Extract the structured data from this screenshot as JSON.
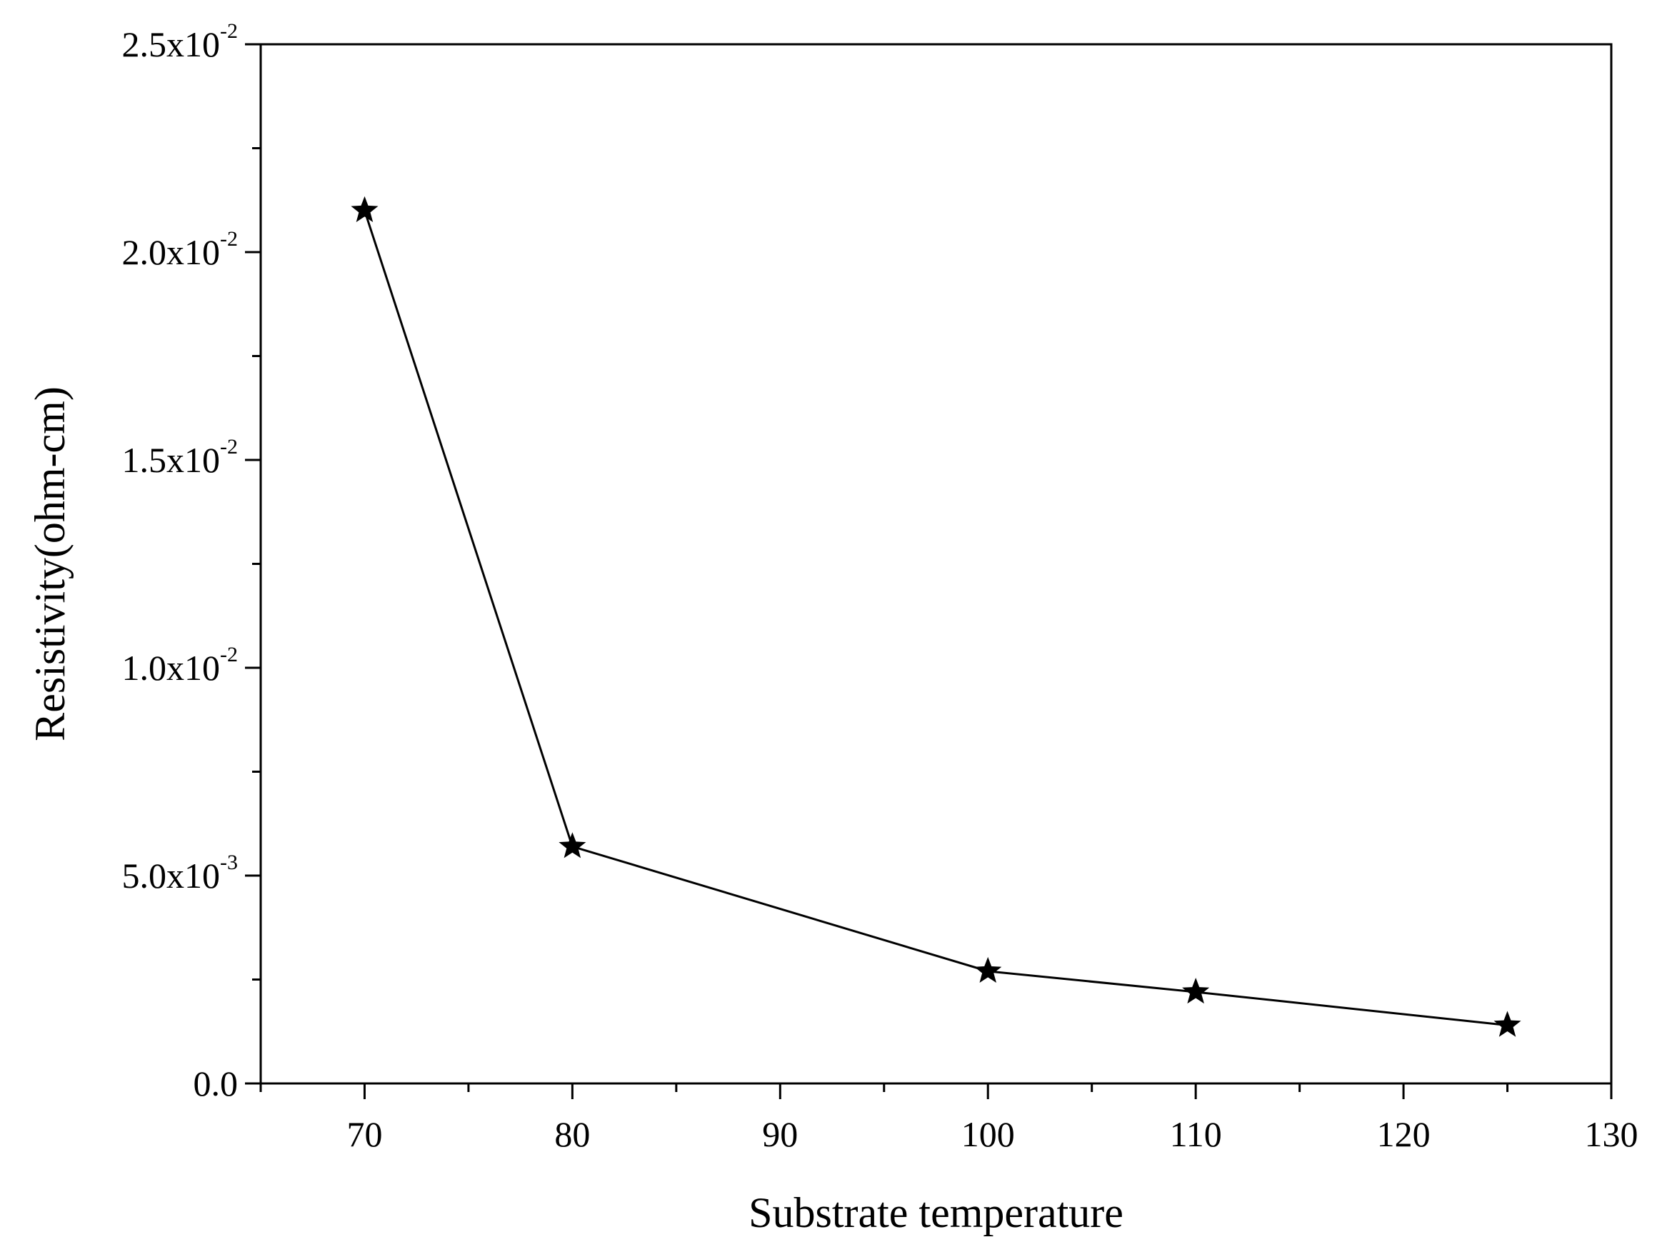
{
  "chart_data": {
    "type": "line",
    "xlabel": "Substrate temperature",
    "ylabel": "Resistivity(ohm-cm)",
    "xlim": [
      65,
      130
    ],
    "ylim": [
      0,
      0.025
    ],
    "x_ticks": [
      70,
      80,
      90,
      100,
      110,
      120,
      130
    ],
    "x_tick_labels": [
      "70",
      "80",
      "90",
      "100",
      "110",
      "120",
      "130"
    ],
    "y_ticks": [
      {
        "value": 0,
        "mantissa": "0.0",
        "exponent": ""
      },
      {
        "value": 0.005,
        "mantissa": "5.0x10",
        "exponent": "-3"
      },
      {
        "value": 0.01,
        "mantissa": "1.0x10",
        "exponent": "-2"
      },
      {
        "value": 0.015,
        "mantissa": "1.5x10",
        "exponent": "-2"
      },
      {
        "value": 0.02,
        "mantissa": "2.0x10",
        "exponent": "-2"
      },
      {
        "value": 0.025,
        "mantissa": "2.5x10",
        "exponent": "-2"
      }
    ],
    "x_minor_step": 5,
    "y_minor_step": 0.0025,
    "marker": "star",
    "grid": false,
    "series": [
      {
        "x": [
          70,
          80,
          100,
          110,
          125
        ],
        "y": [
          0.021,
          0.0057,
          0.0027,
          0.0022,
          0.0014
        ]
      }
    ],
    "color": "#000000"
  }
}
